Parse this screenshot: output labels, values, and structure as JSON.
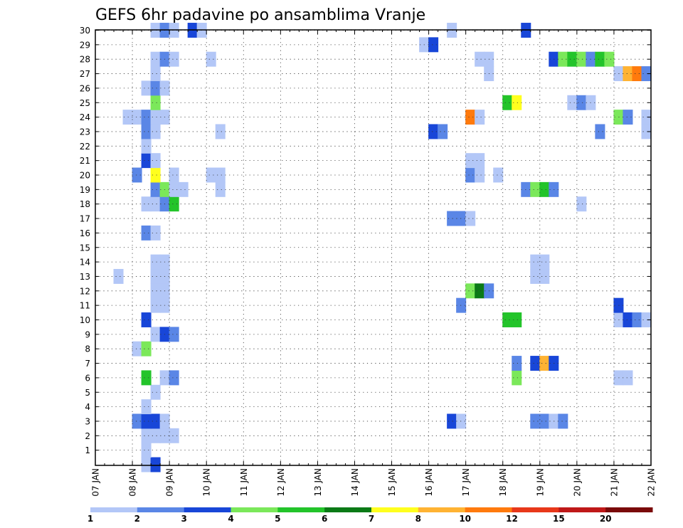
{
  "chart_data": {
    "type": "heatmap",
    "title": "GEFS 6hr padavine po ansamblima Vranje",
    "x_tick_labels": [
      "07 JAN",
      "08 JAN",
      "09 JAN",
      "10 JAN",
      "11 JAN",
      "12 JAN",
      "13 JAN",
      "14 JAN",
      "15 JAN",
      "16 JAN",
      "17 JAN",
      "18 JAN",
      "19 JAN",
      "20 JAN",
      "21 JAN",
      "22 JAN"
    ],
    "y_tick_labels": [
      "1",
      "2",
      "3",
      "4",
      "5",
      "6",
      "7",
      "8",
      "9",
      "10",
      "11",
      "12",
      "13",
      "14",
      "15",
      "16",
      "17",
      "18",
      "19",
      "20",
      "21",
      "22",
      "23",
      "24",
      "25",
      "26",
      "27",
      "28",
      "29",
      "30"
    ],
    "legend": {
      "labels": [
        "1",
        "2",
        "3",
        "4",
        "5",
        "6",
        "7",
        "8",
        "10",
        "12",
        "15",
        "20"
      ],
      "colors": [
        "#b3c7f7",
        "#5a86e6",
        "#1846d8",
        "#7be85a",
        "#23c42a",
        "#0b7a16",
        "#ffff1e",
        "#ffb333",
        "#ff7a0d",
        "#e8381a",
        "#bf1818",
        "#7a0a0a"
      ]
    },
    "palette": {
      "1": "#b3c7f7",
      "2": "#5a86e6",
      "3": "#1846d8",
      "4": "#7be85a",
      "5": "#23c42a",
      "6": "#0b7a16",
      "7": "#ffff1e",
      "8": "#ffb333",
      "10": "#ff7a0d"
    },
    "grid": true,
    "cells": [
      {
        "m": 0,
        "t": 1.25,
        "c": "1"
      },
      {
        "m": 0,
        "t": 1.5,
        "c": "3"
      },
      {
        "m": 1,
        "t": 1.25,
        "c": "1"
      },
      {
        "m": 2,
        "t": 1.25,
        "c": "1"
      },
      {
        "m": 2,
        "t": 1.5,
        "c": "1"
      },
      {
        "m": 2,
        "t": 1.75,
        "c": "1"
      },
      {
        "m": 2,
        "t": 2,
        "c": "1"
      },
      {
        "m": 3,
        "t": 1,
        "c": "2"
      },
      {
        "m": 3,
        "t": 1.25,
        "c": "3"
      },
      {
        "m": 3,
        "t": 1.5,
        "c": "3"
      },
      {
        "m": 3,
        "t": 1.75,
        "c": "1"
      },
      {
        "m": 3,
        "t": 9.5,
        "c": "3"
      },
      {
        "m": 3,
        "t": 9.75,
        "c": "1"
      },
      {
        "m": 3,
        "t": 11.75,
        "c": "2"
      },
      {
        "m": 3,
        "t": 12,
        "c": "2"
      },
      {
        "m": 3,
        "t": 12.25,
        "c": "1"
      },
      {
        "m": 3,
        "t": 12.5,
        "c": "2"
      },
      {
        "m": 4,
        "t": 1.25,
        "c": "1"
      },
      {
        "m": 5,
        "t": 1.5,
        "c": "1"
      },
      {
        "m": 6,
        "t": 1.25,
        "c": "5"
      },
      {
        "m": 6,
        "t": 1.75,
        "c": "1"
      },
      {
        "m": 6,
        "t": 2,
        "c": "2"
      },
      {
        "m": 6,
        "t": 11.25,
        "c": "4"
      },
      {
        "m": 6,
        "t": 14,
        "c": "1"
      },
      {
        "m": 6,
        "t": 14.25,
        "c": "1"
      },
      {
        "m": 7,
        "t": 11.25,
        "c": "2"
      },
      {
        "m": 7,
        "t": 11.75,
        "c": "3"
      },
      {
        "m": 7,
        "t": 12,
        "c": "8"
      },
      {
        "m": 7,
        "t": 12.25,
        "c": "3"
      },
      {
        "m": 8,
        "t": 1,
        "c": "1"
      },
      {
        "m": 8,
        "t": 1.25,
        "c": "4"
      },
      {
        "m": 9,
        "t": 1.5,
        "c": "1"
      },
      {
        "m": 9,
        "t": 1.75,
        "c": "3"
      },
      {
        "m": 9,
        "t": 2,
        "c": "2"
      },
      {
        "m": 10,
        "t": 1.25,
        "c": "3"
      },
      {
        "m": 10,
        "t": 11,
        "c": "5"
      },
      {
        "m": 10,
        "t": 11.25,
        "c": "5"
      },
      {
        "m": 10,
        "t": 14,
        "c": "1"
      },
      {
        "m": 10,
        "t": 14.25,
        "c": "3"
      },
      {
        "m": 10,
        "t": 14.5,
        "c": "2"
      },
      {
        "m": 10,
        "t": 14.75,
        "c": "1"
      },
      {
        "m": 11,
        "t": 1.5,
        "c": "1"
      },
      {
        "m": 11,
        "t": 1.75,
        "c": "1"
      },
      {
        "m": 11,
        "t": 9.75,
        "c": "2"
      },
      {
        "m": 11,
        "t": 14,
        "c": "3"
      },
      {
        "m": 12,
        "t": 1.5,
        "c": "1"
      },
      {
        "m": 12,
        "t": 1.75,
        "c": "1"
      },
      {
        "m": 12,
        "t": 10,
        "c": "4"
      },
      {
        "m": 12,
        "t": 10.25,
        "c": "6"
      },
      {
        "m": 12,
        "t": 10.5,
        "c": "2"
      },
      {
        "m": 13,
        "t": 0.5,
        "c": "1"
      },
      {
        "m": 13,
        "t": 1.5,
        "c": "1"
      },
      {
        "m": 13,
        "t": 1.75,
        "c": "1"
      },
      {
        "m": 13,
        "t": 11.75,
        "c": "1"
      },
      {
        "m": 13,
        "t": 12,
        "c": "1"
      },
      {
        "m": 14,
        "t": 1.5,
        "c": "1"
      },
      {
        "m": 14,
        "t": 1.75,
        "c": "1"
      },
      {
        "m": 14,
        "t": 11.75,
        "c": "1"
      },
      {
        "m": 14,
        "t": 12,
        "c": "1"
      },
      {
        "m": 16,
        "t": 1.25,
        "c": "2"
      },
      {
        "m": 16,
        "t": 1.5,
        "c": "1"
      },
      {
        "m": 17,
        "t": 9.5,
        "c": "2"
      },
      {
        "m": 17,
        "t": 9.75,
        "c": "2"
      },
      {
        "m": 17,
        "t": 10,
        "c": "1"
      },
      {
        "m": 18,
        "t": 1.25,
        "c": "1"
      },
      {
        "m": 18,
        "t": 1.5,
        "c": "1"
      },
      {
        "m": 18,
        "t": 1.75,
        "c": "2"
      },
      {
        "m": 18,
        "t": 2,
        "c": "5"
      },
      {
        "m": 18,
        "t": 13,
        "c": "1"
      },
      {
        "m": 19,
        "t": 1.5,
        "c": "2"
      },
      {
        "m": 19,
        "t": 1.75,
        "c": "4"
      },
      {
        "m": 19,
        "t": 2,
        "c": "1"
      },
      {
        "m": 19,
        "t": 2.25,
        "c": "1"
      },
      {
        "m": 19,
        "t": 3.25,
        "c": "1"
      },
      {
        "m": 19,
        "t": 11.5,
        "c": "2"
      },
      {
        "m": 19,
        "t": 11.75,
        "c": "4"
      },
      {
        "m": 19,
        "t": 12,
        "c": "5"
      },
      {
        "m": 19,
        "t": 12.25,
        "c": "2"
      },
      {
        "m": 20,
        "t": 1,
        "c": "2"
      },
      {
        "m": 20,
        "t": 1.5,
        "c": "7"
      },
      {
        "m": 20,
        "t": 2,
        "c": "1"
      },
      {
        "m": 20,
        "t": 3,
        "c": "1"
      },
      {
        "m": 20,
        "t": 3.25,
        "c": "1"
      },
      {
        "m": 20,
        "t": 10,
        "c": "2"
      },
      {
        "m": 20,
        "t": 10.25,
        "c": "1"
      },
      {
        "m": 20,
        "t": 10.75,
        "c": "1"
      },
      {
        "m": 21,
        "t": 1.25,
        "c": "3"
      },
      {
        "m": 21,
        "t": 1.5,
        "c": "1"
      },
      {
        "m": 21,
        "t": 10,
        "c": "1"
      },
      {
        "m": 21,
        "t": 10.25,
        "c": "1"
      },
      {
        "m": 22,
        "t": 1.25,
        "c": "1"
      },
      {
        "m": 23,
        "t": 1.25,
        "c": "2"
      },
      {
        "m": 23,
        "t": 1.5,
        "c": "1"
      },
      {
        "m": 23,
        "t": 3.25,
        "c": "1"
      },
      {
        "m": 23,
        "t": 9,
        "c": "3"
      },
      {
        "m": 23,
        "t": 9.25,
        "c": "2"
      },
      {
        "m": 23,
        "t": 13.5,
        "c": "2"
      },
      {
        "m": 23,
        "t": 14.75,
        "c": "1"
      },
      {
        "m": 24,
        "t": 0.75,
        "c": "1"
      },
      {
        "m": 24,
        "t": 1,
        "c": "1"
      },
      {
        "m": 24,
        "t": 1.25,
        "c": "2"
      },
      {
        "m": 24,
        "t": 1.5,
        "c": "1"
      },
      {
        "m": 24,
        "t": 1.75,
        "c": "1"
      },
      {
        "m": 24,
        "t": 10,
        "c": "10"
      },
      {
        "m": 24,
        "t": 10.25,
        "c": "1"
      },
      {
        "m": 24,
        "t": 14,
        "c": "4"
      },
      {
        "m": 24,
        "t": 14.25,
        "c": "2"
      },
      {
        "m": 24,
        "t": 14.75,
        "c": "1"
      },
      {
        "m": 25,
        "t": 1.5,
        "c": "4"
      },
      {
        "m": 25,
        "t": 11,
        "c": "5"
      },
      {
        "m": 25,
        "t": 11.25,
        "c": "7"
      },
      {
        "m": 25,
        "t": 12.75,
        "c": "1"
      },
      {
        "m": 25,
        "t": 13,
        "c": "2"
      },
      {
        "m": 25,
        "t": 13.25,
        "c": "1"
      },
      {
        "m": 26,
        "t": 1.25,
        "c": "1"
      },
      {
        "m": 26,
        "t": 1.5,
        "c": "2"
      },
      {
        "m": 26,
        "t": 1.75,
        "c": "1"
      },
      {
        "m": 27,
        "t": 1.5,
        "c": "1"
      },
      {
        "m": 27,
        "t": 10.5,
        "c": "1"
      },
      {
        "m": 27,
        "t": 14,
        "c": "1"
      },
      {
        "m": 27,
        "t": 14.25,
        "c": "8"
      },
      {
        "m": 27,
        "t": 14.5,
        "c": "10"
      },
      {
        "m": 27,
        "t": 14.75,
        "c": "2"
      },
      {
        "m": 28,
        "t": 1.5,
        "c": "1"
      },
      {
        "m": 28,
        "t": 1.75,
        "c": "2"
      },
      {
        "m": 28,
        "t": 2,
        "c": "1"
      },
      {
        "m": 28,
        "t": 3,
        "c": "1"
      },
      {
        "m": 28,
        "t": 10.25,
        "c": "1"
      },
      {
        "m": 28,
        "t": 10.5,
        "c": "1"
      },
      {
        "m": 28,
        "t": 12.25,
        "c": "3"
      },
      {
        "m": 28,
        "t": 12.5,
        "c": "4"
      },
      {
        "m": 28,
        "t": 12.75,
        "c": "5"
      },
      {
        "m": 28,
        "t": 13,
        "c": "4"
      },
      {
        "m": 28,
        "t": 13.25,
        "c": "2"
      },
      {
        "m": 28,
        "t": 13.5,
        "c": "5"
      },
      {
        "m": 28,
        "t": 13.75,
        "c": "4"
      },
      {
        "m": 29,
        "t": 8.75,
        "c": "1"
      },
      {
        "m": 29,
        "t": 9,
        "c": "3"
      },
      {
        "m": 30,
        "t": 1.5,
        "c": "1"
      },
      {
        "m": 30,
        "t": 1.75,
        "c": "2"
      },
      {
        "m": 30,
        "t": 2,
        "c": "1"
      },
      {
        "m": 30,
        "t": 2.5,
        "c": "3"
      },
      {
        "m": 30,
        "t": 2.75,
        "c": "1"
      },
      {
        "m": 30,
        "t": 9.5,
        "c": "1"
      },
      {
        "m": 30,
        "t": 11.5,
        "c": "3"
      }
    ]
  }
}
